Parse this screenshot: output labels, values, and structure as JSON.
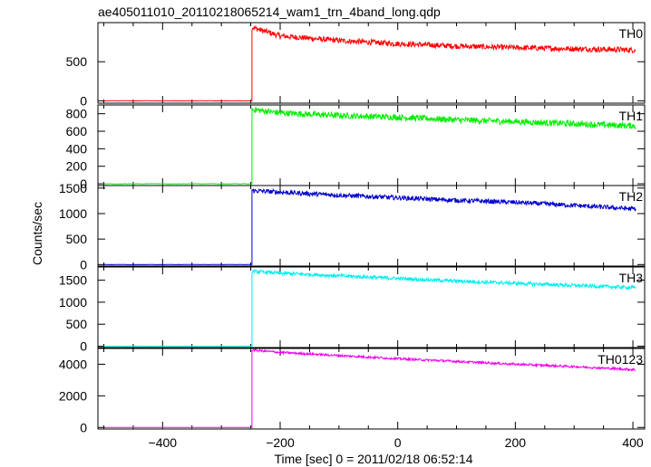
{
  "chart_data": {
    "type": "line",
    "title": "ae405011010_20110218065214_wam1_trn_4band_long.qdp",
    "xlabel": "Time [sec] 0 = 2011/02/18 06:52:14",
    "ylabel": "Counts/sec",
    "xlim": [
      -510,
      420
    ],
    "x_ticks": [
      -400,
      -200,
      0,
      200,
      400
    ],
    "x_tick_labels": [
      "−400",
      "−200",
      "0",
      "200",
      "400"
    ],
    "step_time": -248,
    "panels": [
      {
        "name": "TH0",
        "color": "#ff0000",
        "ylim": [
          -30,
          1000
        ],
        "y_ticks": [
          0,
          500
        ],
        "y_tick_labels": [
          "0",
          "500"
        ],
        "baseline": 0,
        "series": [
          {
            "x": -248,
            "y": 940
          },
          {
            "x": -200,
            "y": 830
          },
          {
            "x": -100,
            "y": 770
          },
          {
            "x": 0,
            "y": 730
          },
          {
            "x": 100,
            "y": 700
          },
          {
            "x": 200,
            "y": 680
          },
          {
            "x": 300,
            "y": 665
          },
          {
            "x": 405,
            "y": 650
          }
        ],
        "noise": 35
      },
      {
        "name": "TH1",
        "color": "#00ee00",
        "ylim": [
          -20,
          900
        ],
        "y_ticks": [
          0,
          200,
          400,
          600,
          800
        ],
        "y_tick_labels": [
          "0",
          "200",
          "400",
          "600",
          "800"
        ],
        "baseline": 0,
        "series": [
          {
            "x": -248,
            "y": 850
          },
          {
            "x": -200,
            "y": 810
          },
          {
            "x": -100,
            "y": 780
          },
          {
            "x": 0,
            "y": 760
          },
          {
            "x": 100,
            "y": 730
          },
          {
            "x": 200,
            "y": 710
          },
          {
            "x": 300,
            "y": 685
          },
          {
            "x": 405,
            "y": 660
          }
        ],
        "noise": 35
      },
      {
        "name": "TH2",
        "color": "#0000cc",
        "ylim": [
          -30,
          1550
        ],
        "y_ticks": [
          0,
          500,
          1000,
          1500
        ],
        "y_tick_labels": [
          "0",
          "500",
          "1000",
          "1500"
        ],
        "baseline": 0,
        "series": [
          {
            "x": -248,
            "y": 1450
          },
          {
            "x": -200,
            "y": 1420
          },
          {
            "x": -100,
            "y": 1360
          },
          {
            "x": 0,
            "y": 1310
          },
          {
            "x": 100,
            "y": 1260
          },
          {
            "x": 200,
            "y": 1220
          },
          {
            "x": 300,
            "y": 1160
          },
          {
            "x": 405,
            "y": 1090
          }
        ],
        "noise": 45
      },
      {
        "name": "TH3",
        "color": "#00eeee",
        "ylim": [
          -30,
          1800
        ],
        "y_ticks": [
          0,
          500,
          1000,
          1500
        ],
        "y_tick_labels": [
          "0",
          "500",
          "1000",
          "1500"
        ],
        "baseline": 0,
        "series": [
          {
            "x": -248,
            "y": 1700
          },
          {
            "x": -200,
            "y": 1660
          },
          {
            "x": -100,
            "y": 1600
          },
          {
            "x": 0,
            "y": 1540
          },
          {
            "x": 100,
            "y": 1480
          },
          {
            "x": 200,
            "y": 1430
          },
          {
            "x": 300,
            "y": 1380
          },
          {
            "x": 405,
            "y": 1330
          }
        ],
        "noise": 40
      },
      {
        "name": "TH0123",
        "color": "#ee00ee",
        "ylim": [
          -100,
          5000
        ],
        "y_ticks": [
          0,
          2000,
          4000
        ],
        "y_tick_labels": [
          "0",
          "2000",
          "4000"
        ],
        "baseline": 0,
        "series": [
          {
            "x": -248,
            "y": 4900
          },
          {
            "x": -200,
            "y": 4750
          },
          {
            "x": -100,
            "y": 4550
          },
          {
            "x": 0,
            "y": 4350
          },
          {
            "x": 100,
            "y": 4180
          },
          {
            "x": 200,
            "y": 4000
          },
          {
            "x": 300,
            "y": 3850
          },
          {
            "x": 405,
            "y": 3650
          }
        ],
        "noise": 70
      }
    ]
  }
}
